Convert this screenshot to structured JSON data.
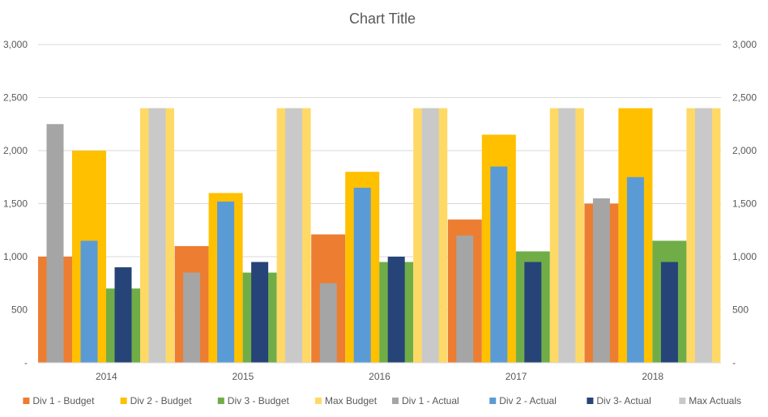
{
  "chart_data": {
    "type": "bar",
    "title": "Chart Title",
    "xlabel": "",
    "ylabel": "",
    "ylim": [
      0,
      3000
    ],
    "yticks": [
      0,
      500,
      1000,
      1500,
      2000,
      2500,
      3000
    ],
    "ytick_labels": [
      "-",
      "500",
      "1,000",
      "1,500",
      "2,000",
      "2,500",
      "3,000"
    ],
    "secondary_yticks": [
      0,
      500,
      1000,
      1500,
      2000,
      2500,
      3000
    ],
    "secondary_ytick_labels": [
      "-",
      "500",
      "1,000",
      "1,500",
      "2,000",
      "2,500",
      "3,000"
    ],
    "grid": true,
    "legend_position": "bottom",
    "categories": [
      "2014",
      "2015",
      "2016",
      "2017",
      "2018"
    ],
    "budget_series": [
      {
        "name": "Div 1 - Budget",
        "color": "#ED7D31",
        "values": [
          1000,
          1100,
          1210,
          1350,
          1500
        ]
      },
      {
        "name": "Div 2 - Budget",
        "color": "#FFC000",
        "values": [
          2000,
          1600,
          1800,
          2150,
          2400
        ]
      },
      {
        "name": "Div 3 - Budget",
        "color": "#70AD47",
        "values": [
          700,
          850,
          950,
          1050,
          1150
        ]
      },
      {
        "name": "Max Budget",
        "color": "#FFD966",
        "values": [
          2400,
          2400,
          2400,
          2400,
          2400
        ]
      }
    ],
    "actual_series": [
      {
        "name": "Div 1 - Actual",
        "color": "#A5A5A5",
        "values": [
          2250,
          850,
          750,
          1200,
          1550
        ]
      },
      {
        "name": "Div 2 - Actual",
        "color": "#5B9BD5",
        "values": [
          1150,
          1520,
          1650,
          1850,
          1750
        ]
      },
      {
        "name": "Div 3- Actual",
        "color": "#264478",
        "values": [
          900,
          950,
          1000,
          950,
          950
        ]
      },
      {
        "name": "Max Actuals",
        "color": "#C9C9C9",
        "values": [
          2400,
          2400,
          2400,
          2400,
          2400
        ]
      }
    ],
    "legend_order": [
      {
        "name": "Div 1 - Budget",
        "color": "#ED7D31"
      },
      {
        "name": "Div 2 - Budget",
        "color": "#FFC000"
      },
      {
        "name": "Div 3 - Budget",
        "color": "#70AD47"
      },
      {
        "name": "Max Budget",
        "color": "#FFD966"
      },
      {
        "name": "Div 1 - Actual",
        "color": "#A5A5A5"
      },
      {
        "name": "Div 2 - Actual",
        "color": "#5B9BD5"
      },
      {
        "name": "Div 3- Actual",
        "color": "#264478"
      },
      {
        "name": "Max Actuals",
        "color": "#C9C9C9"
      }
    ]
  }
}
